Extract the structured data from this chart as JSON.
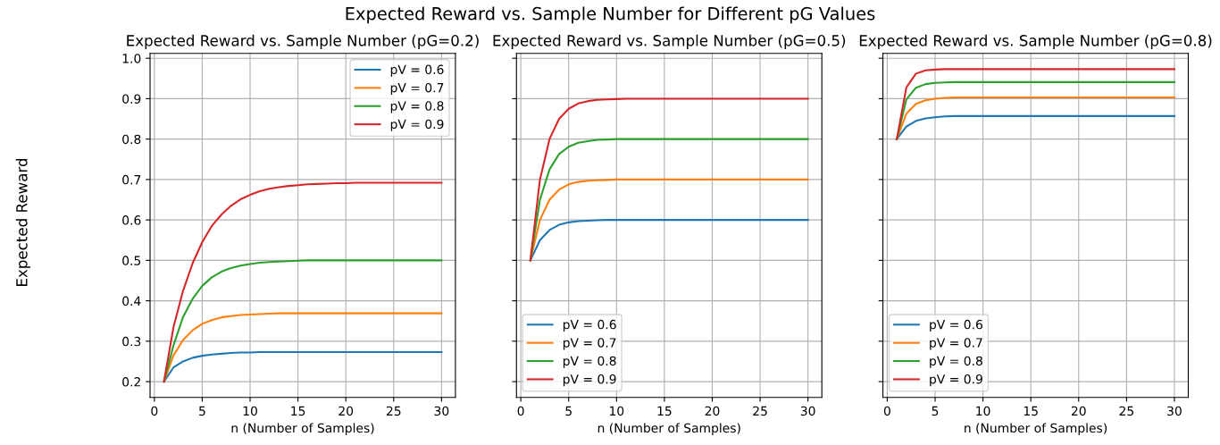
{
  "chart_data": [
    {
      "type": "line",
      "title": "Expected Reward vs. Sample Number (pG=0.2)",
      "xlabel": "n (Number of Samples)",
      "ylabel": "Expected Reward",
      "annotations": [
        "Expected Reward vs. Sample Number for Different pG Values"
      ],
      "x": [
        1,
        2,
        3,
        4,
        5,
        6,
        7,
        8,
        9,
        10,
        11,
        12,
        13,
        14,
        15,
        16,
        17,
        18,
        19,
        20,
        21,
        22,
        23,
        24,
        25,
        26,
        27,
        28,
        29,
        30
      ],
      "series": [
        {
          "name": "pV = 0.6",
          "color": "#1f77b4",
          "values": [
            0.2,
            0.235,
            0.25,
            0.259,
            0.264,
            0.267,
            0.269,
            0.271,
            0.272,
            0.272,
            0.273,
            0.273,
            0.273,
            0.273,
            0.273,
            0.273,
            0.273,
            0.273,
            0.273,
            0.273,
            0.273,
            0.273,
            0.273,
            0.273,
            0.273,
            0.273,
            0.273,
            0.273,
            0.273,
            0.273
          ]
        },
        {
          "name": "pV = 0.7",
          "color": "#ff7f0e",
          "values": [
            0.2,
            0.265,
            0.303,
            0.327,
            0.343,
            0.352,
            0.359,
            0.362,
            0.365,
            0.366,
            0.367,
            0.368,
            0.369,
            0.369,
            0.369,
            0.369,
            0.369,
            0.369,
            0.369,
            0.369,
            0.369,
            0.369,
            0.369,
            0.369,
            0.369,
            0.369,
            0.369,
            0.369,
            0.369,
            0.369
          ]
        },
        {
          "name": "pV = 0.8",
          "color": "#2ca02c",
          "values": [
            0.2,
            0.29,
            0.36,
            0.405,
            0.437,
            0.458,
            0.472,
            0.481,
            0.487,
            0.491,
            0.494,
            0.496,
            0.497,
            0.498,
            0.499,
            0.5,
            0.5,
            0.5,
            0.5,
            0.5,
            0.5,
            0.5,
            0.5,
            0.5,
            0.5,
            0.5,
            0.5,
            0.5,
            0.5,
            0.5
          ]
        },
        {
          "name": "pV = 0.9",
          "color": "#d62728",
          "values": [
            0.2,
            0.335,
            0.425,
            0.493,
            0.545,
            0.585,
            0.613,
            0.635,
            0.651,
            0.662,
            0.671,
            0.677,
            0.681,
            0.684,
            0.686,
            0.688,
            0.689,
            0.69,
            0.691,
            0.691,
            0.692,
            0.692,
            0.692,
            0.692,
            0.692,
            0.692,
            0.692,
            0.692,
            0.692,
            0.692
          ]
        }
      ],
      "xlim": [
        -0.45,
        31.45
      ],
      "xticks": [
        0,
        5,
        10,
        15,
        20,
        25,
        30
      ],
      "ylim": [
        0.161,
        1.012
      ],
      "yticks": [
        0.2,
        0.3,
        0.4,
        0.5,
        0.6,
        0.7,
        0.8,
        0.9,
        {
          "value": 1.0,
          "label": "1.0"
        }
      ],
      "grid": true,
      "legend": "top right",
      "line_style": "solid",
      "marker": "none"
    },
    {
      "type": "line",
      "title": "Expected Reward vs. Sample Number (pG=0.5)",
      "xlabel": "n (Number of Samples)",
      "x": [
        1,
        2,
        3,
        4,
        5,
        6,
        7,
        8,
        9,
        10,
        11,
        12,
        13,
        14,
        15,
        16,
        17,
        18,
        19,
        20,
        21,
        22,
        23,
        24,
        25,
        26,
        27,
        28,
        29,
        30
      ],
      "series": [
        {
          "name": "pV = 0.6",
          "color": "#1f77b4",
          "values": [
            0.5,
            0.55,
            0.575,
            0.588,
            0.594,
            0.597,
            0.598,
            0.599,
            0.6,
            0.6,
            0.6,
            0.6,
            0.6,
            0.6,
            0.6,
            0.6,
            0.6,
            0.6,
            0.6,
            0.6,
            0.6,
            0.6,
            0.6,
            0.6,
            0.6,
            0.6,
            0.6,
            0.6,
            0.6,
            0.6
          ]
        },
        {
          "name": "pV = 0.7",
          "color": "#ff7f0e",
          "values": [
            0.5,
            0.6,
            0.65,
            0.675,
            0.688,
            0.694,
            0.697,
            0.698,
            0.699,
            0.7,
            0.7,
            0.7,
            0.7,
            0.7,
            0.7,
            0.7,
            0.7,
            0.7,
            0.7,
            0.7,
            0.7,
            0.7,
            0.7,
            0.7,
            0.7,
            0.7,
            0.7,
            0.7,
            0.7,
            0.7
          ]
        },
        {
          "name": "pV = 0.8",
          "color": "#2ca02c",
          "values": [
            0.5,
            0.65,
            0.725,
            0.763,
            0.781,
            0.791,
            0.795,
            0.798,
            0.799,
            0.8,
            0.8,
            0.8,
            0.8,
            0.8,
            0.8,
            0.8,
            0.8,
            0.8,
            0.8,
            0.8,
            0.8,
            0.8,
            0.8,
            0.8,
            0.8,
            0.8,
            0.8,
            0.8,
            0.8,
            0.8
          ]
        },
        {
          "name": "pV = 0.9",
          "color": "#d62728",
          "values": [
            0.5,
            0.7,
            0.8,
            0.85,
            0.875,
            0.888,
            0.894,
            0.897,
            0.898,
            0.899,
            0.9,
            0.9,
            0.9,
            0.9,
            0.9,
            0.9,
            0.9,
            0.9,
            0.9,
            0.9,
            0.9,
            0.9,
            0.9,
            0.9,
            0.9,
            0.9,
            0.9,
            0.9,
            0.9,
            0.9
          ]
        }
      ],
      "xlim": [
        -0.45,
        31.45
      ],
      "xticks": [
        0,
        5,
        10,
        15,
        20,
        25,
        30
      ],
      "ylim": [
        0.161,
        1.012
      ],
      "yticks": [
        0.2,
        0.3,
        0.4,
        0.5,
        0.6,
        0.7,
        0.8,
        0.9,
        1.0
      ],
      "tick_labels": "x",
      "grid": true,
      "legend": "bottom left",
      "line_style": "solid",
      "marker": "none"
    },
    {
      "type": "line",
      "title": "Expected Reward vs. Sample Number (pG=0.8)",
      "xlabel": "n (Number of Samples)",
      "x": [
        1,
        2,
        3,
        4,
        5,
        6,
        7,
        8,
        9,
        10,
        11,
        12,
        13,
        14,
        15,
        16,
        17,
        18,
        19,
        20,
        21,
        22,
        23,
        24,
        25,
        26,
        27,
        28,
        29,
        30
      ],
      "series": [
        {
          "name": "pV = 0.6",
          "color": "#1f77b4",
          "values": [
            0.8,
            0.831,
            0.845,
            0.851,
            0.854,
            0.856,
            0.857,
            0.857,
            0.857,
            0.857,
            0.857,
            0.857,
            0.857,
            0.857,
            0.857,
            0.857,
            0.857,
            0.857,
            0.857,
            0.857,
            0.857,
            0.857,
            0.857,
            0.857,
            0.857,
            0.857,
            0.857,
            0.857,
            0.857,
            0.857
          ]
        },
        {
          "name": "pV = 0.7",
          "color": "#ff7f0e",
          "values": [
            0.8,
            0.863,
            0.887,
            0.896,
            0.9,
            0.902,
            0.903,
            0.903,
            0.903,
            0.903,
            0.903,
            0.903,
            0.903,
            0.903,
            0.903,
            0.903,
            0.903,
            0.903,
            0.903,
            0.903,
            0.903,
            0.903,
            0.903,
            0.903,
            0.903,
            0.903,
            0.903,
            0.903,
            0.903,
            0.903
          ]
        },
        {
          "name": "pV = 0.8",
          "color": "#2ca02c",
          "values": [
            0.8,
            0.898,
            0.927,
            0.936,
            0.939,
            0.94,
            0.941,
            0.941,
            0.941,
            0.941,
            0.941,
            0.941,
            0.941,
            0.941,
            0.941,
            0.941,
            0.941,
            0.941,
            0.941,
            0.941,
            0.941,
            0.941,
            0.941,
            0.941,
            0.941,
            0.941,
            0.941,
            0.941,
            0.941,
            0.941
          ]
        },
        {
          "name": "pV = 0.9",
          "color": "#d62728",
          "values": [
            0.8,
            0.928,
            0.962,
            0.97,
            0.972,
            0.973,
            0.973,
            0.973,
            0.973,
            0.973,
            0.973,
            0.973,
            0.973,
            0.973,
            0.973,
            0.973,
            0.973,
            0.973,
            0.973,
            0.973,
            0.973,
            0.973,
            0.973,
            0.973,
            0.973,
            0.973,
            0.973,
            0.973,
            0.973,
            0.973
          ]
        }
      ],
      "xlim": [
        -0.45,
        31.45
      ],
      "xticks": [
        0,
        5,
        10,
        15,
        20,
        25,
        30
      ],
      "ylim": [
        0.161,
        1.012
      ],
      "yticks": [
        0.2,
        0.3,
        0.4,
        0.5,
        0.6,
        0.7,
        0.8,
        0.9,
        1.0
      ],
      "tick_labels": "x",
      "grid": true,
      "legend": "bottom left",
      "line_style": "solid",
      "marker": "none"
    }
  ]
}
